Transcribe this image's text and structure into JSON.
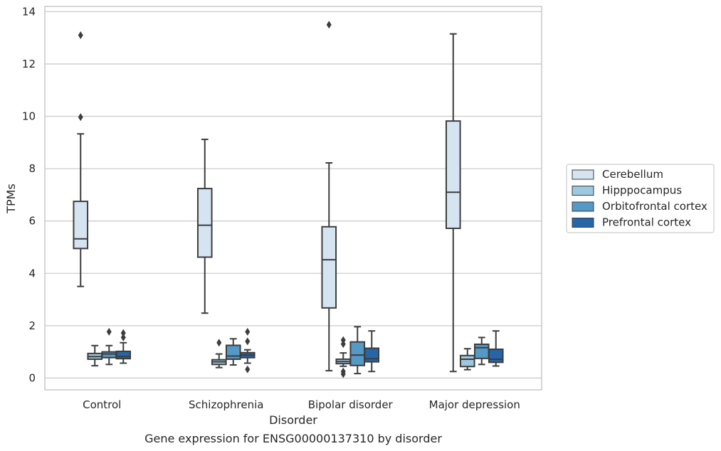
{
  "caption": "Gene expression for ENSG00000137310 by disorder",
  "colors": {
    "Cerebellum": "#d6e4f2",
    "Hipppocampus": "#9ec8df",
    "Orbitofrontal cortex": "#5599c7",
    "Prefrontal cortex": "#2666a8",
    "box_edge": "#3d3d3d",
    "grid": "#cccccc",
    "frame": "#cccccc"
  },
  "chart_data": {
    "type": "box",
    "title": "",
    "xlabel": "Disorder",
    "ylabel": "TPMs",
    "ylim": [
      -0.45,
      14.2
    ],
    "yticks": [
      0,
      2,
      4,
      6,
      8,
      10,
      12,
      14
    ],
    "grid": "horizontal",
    "legend_position": "right",
    "categories": [
      "Control",
      "Schizophrenia",
      "Bipolar disorder",
      "Major depression"
    ],
    "series": [
      {
        "name": "Cerebellum",
        "boxes": [
          {
            "whislo": 3.5,
            "q1": 4.95,
            "med": 5.32,
            "q3": 6.75,
            "whishi": 9.33,
            "fliers": [
              9.97,
              13.1
            ]
          },
          {
            "whislo": 2.48,
            "q1": 4.62,
            "med": 5.84,
            "q3": 7.24,
            "whishi": 9.12,
            "fliers": []
          },
          {
            "whislo": 0.28,
            "q1": 2.68,
            "med": 4.52,
            "q3": 5.78,
            "whishi": 8.22,
            "fliers": [
              13.5
            ]
          },
          {
            "whislo": 0.25,
            "q1": 5.72,
            "med": 7.1,
            "q3": 9.82,
            "whishi": 13.15,
            "fliers": []
          }
        ]
      },
      {
        "name": "Hipppocampus",
        "boxes": [
          {
            "whislo": 0.47,
            "q1": 0.72,
            "med": 0.82,
            "q3": 0.94,
            "whishi": 1.24,
            "fliers": []
          },
          {
            "whislo": 0.4,
            "q1": 0.52,
            "med": 0.62,
            "q3": 0.7,
            "whishi": 0.92,
            "fliers": [
              1.35
            ]
          },
          {
            "whislo": 0.45,
            "q1": 0.55,
            "med": 0.63,
            "q3": 0.72,
            "whishi": 0.96,
            "fliers": [
              0.15,
              0.25,
              1.3,
              1.45
            ]
          },
          {
            "whislo": 0.32,
            "q1": 0.44,
            "med": 0.72,
            "q3": 0.86,
            "whishi": 1.12,
            "fliers": []
          }
        ]
      },
      {
        "name": "Orbitofrontal cortex",
        "boxes": [
          {
            "whislo": 0.52,
            "q1": 0.78,
            "med": 0.92,
            "q3": 1.0,
            "whishi": 1.24,
            "fliers": [
              1.77
            ]
          },
          {
            "whislo": 0.5,
            "q1": 0.72,
            "med": 0.84,
            "q3": 1.25,
            "whishi": 1.5,
            "fliers": []
          },
          {
            "whislo": 0.17,
            "q1": 0.48,
            "med": 0.88,
            "q3": 1.38,
            "whishi": 1.96,
            "fliers": []
          },
          {
            "whislo": 0.52,
            "q1": 0.75,
            "med": 1.16,
            "q3": 1.29,
            "whishi": 1.55,
            "fliers": []
          }
        ]
      },
      {
        "name": "Prefrontal cortex",
        "boxes": [
          {
            "whislo": 0.57,
            "q1": 0.74,
            "med": 0.82,
            "q3": 1.02,
            "whishi": 1.35,
            "fliers": [
              1.55,
              1.72
            ]
          },
          {
            "whislo": 0.57,
            "q1": 0.78,
            "med": 0.88,
            "q3": 0.97,
            "whishi": 1.08,
            "fliers": [
              0.33,
              1.4,
              1.77
            ]
          },
          {
            "whislo": 0.25,
            "q1": 0.62,
            "med": 0.74,
            "q3": 1.14,
            "whishi": 1.8,
            "fliers": []
          },
          {
            "whislo": 0.46,
            "q1": 0.6,
            "med": 0.72,
            "q3": 1.1,
            "whishi": 1.8,
            "fliers": []
          }
        ]
      }
    ]
  }
}
